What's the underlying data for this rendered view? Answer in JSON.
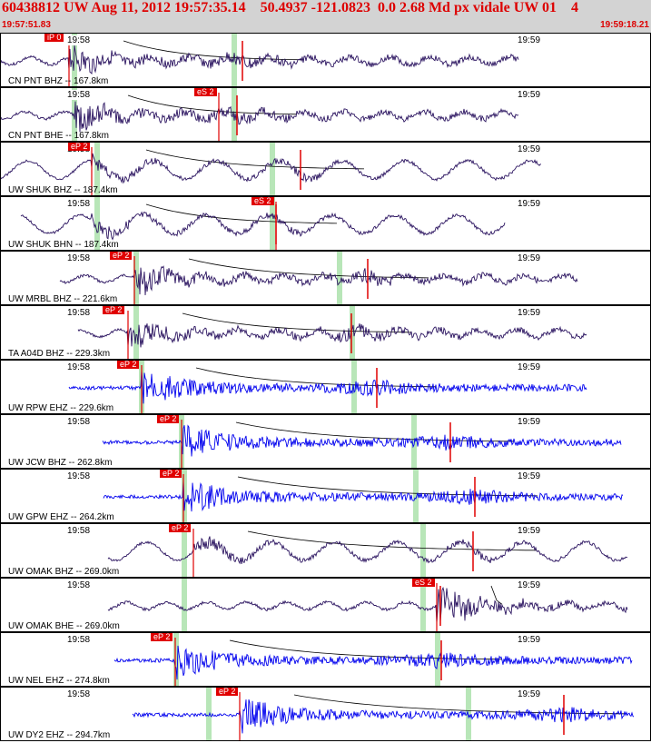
{
  "header": {
    "title": "60438812 UW Aug 11, 2012 19:57:35.14    50.4937 -121.0823  0.0 2.68 Md px vidale UW 01    4",
    "start_time": "19:57:51.83",
    "end_time": "19:59:18.21"
  },
  "colors": {
    "header_bg": "#d3d3d3",
    "header_text": "#dd0000",
    "trace_broadband": "#2b1460",
    "trace_short_period": "#0000ee",
    "pick": "#e00000",
    "window": "#b8e6b8"
  },
  "channels": [
    {
      "label": "CN PNT BHZ -- 167.8km",
      "tick1": "19:58",
      "tick2": "19:59",
      "pick": "iP 0",
      "color": "broadband"
    },
    {
      "label": "CN PNT BHE -- 167.8km",
      "tick1": "19:58",
      "tick2": "19:59",
      "pick": "eS 2",
      "color": "broadband"
    },
    {
      "label": "UW SHUK BHZ -- 187.4km",
      "tick1": "19:58",
      "tick2": "19:59",
      "pick": "eP 2",
      "color": "broadband"
    },
    {
      "label": "UW SHUK BHN -- 187.4km",
      "tick1": "19:58",
      "tick2": "19:59",
      "pick": "eS 2",
      "color": "broadband"
    },
    {
      "label": "UW MRBL BHZ -- 221.6km",
      "tick1": "19:58",
      "tick2": "19:59",
      "pick": "eP 2",
      "color": "broadband"
    },
    {
      "label": "TA A04D BHZ -- 229.3km",
      "tick1": "19:58",
      "tick2": "19:59",
      "pick": "eP 2",
      "color": "broadband"
    },
    {
      "label": "UW RPW EHZ -- 229.6km",
      "tick1": "19:58",
      "tick2": "19:59",
      "pick": "eP 2",
      "color": "short_period"
    },
    {
      "label": "UW JCW BHZ -- 262.8km",
      "tick1": "19:58",
      "tick2": "19:59",
      "pick": "eP 2",
      "color": "short_period"
    },
    {
      "label": "UW GPW EHZ -- 264.2km",
      "tick1": "19:58",
      "tick2": "19:59",
      "pick": "eP 2",
      "color": "short_period"
    },
    {
      "label": "UW OMAK BHZ -- 269.0km",
      "tick1": "19:58",
      "tick2": "19:59",
      "pick": "eP 2",
      "color": "broadband"
    },
    {
      "label": "UW OMAK BHE -- 269.0km",
      "tick1": "19:58",
      "tick2": "19:59",
      "pick": "eS 2",
      "color": "broadband"
    },
    {
      "label": "UW NEL EHZ -- 274.8km",
      "tick1": "19:58",
      "tick2": "19:59",
      "pick": "eP 2",
      "color": "short_period"
    },
    {
      "label": "UW DY2 EHZ -- 294.7km",
      "tick1": "19:58",
      "tick2": "19:59",
      "pick": "eP 2",
      "color": "short_period"
    }
  ]
}
